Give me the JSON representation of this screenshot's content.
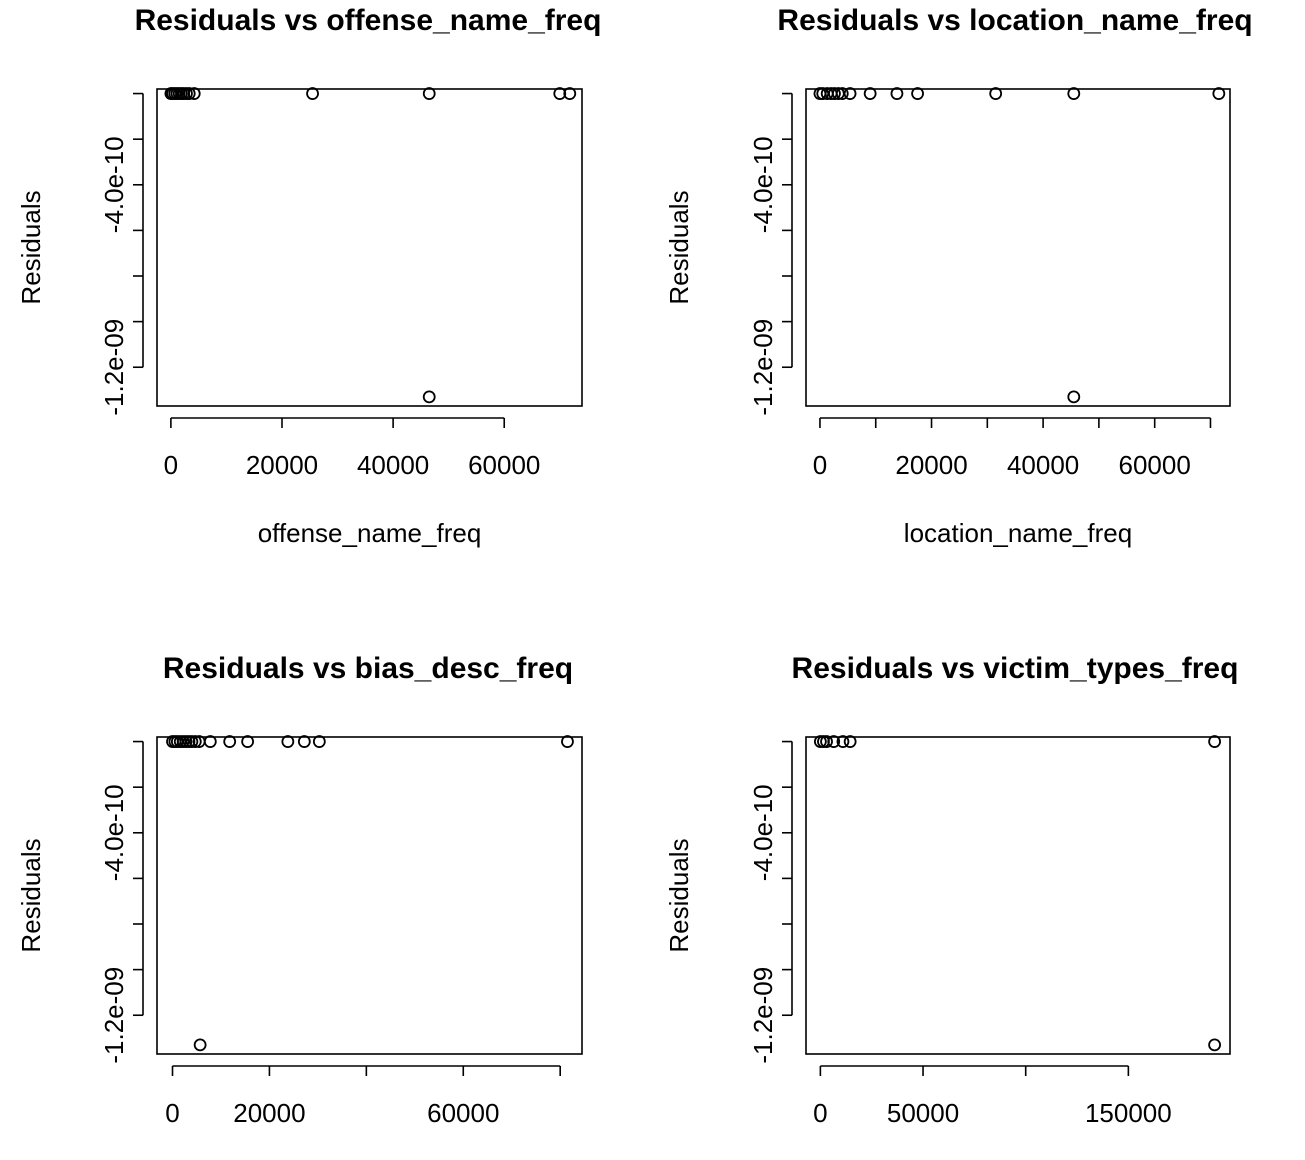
{
  "chart_data": [
    {
      "type": "scatter",
      "title": "Residuals vs offense_name_freq",
      "xlabel": "offense_name_freq",
      "ylabel": "Residuals",
      "xticks": [
        0,
        20000,
        40000,
        60000
      ],
      "xtick_labels": [
        "0",
        "20000",
        "40000",
        "60000"
      ],
      "yticks": [
        0,
        -2e-10,
        -4e-10,
        -6e-10,
        -8e-10,
        -1e-09,
        -1.2e-09
      ],
      "ytick_labels": [
        "",
        "-4.0e-10",
        "",
        "-1.2e-09"
      ],
      "ytick_label_values": [
        -2e-10,
        -4e-10,
        -1e-09,
        -1.2e-09
      ],
      "xlim": [
        -2500,
        74000
      ],
      "ylim": [
        -1.37e-09,
        2e-11
      ],
      "points": [
        {
          "x": 0,
          "y": 0
        },
        {
          "x": 300,
          "y": 0
        },
        {
          "x": 700,
          "y": 0
        },
        {
          "x": 1100,
          "y": 0
        },
        {
          "x": 1500,
          "y": 0
        },
        {
          "x": 1900,
          "y": 0
        },
        {
          "x": 2300,
          "y": 0
        },
        {
          "x": 2800,
          "y": 0
        },
        {
          "x": 3300,
          "y": 0
        },
        {
          "x": 4200,
          "y": 0
        },
        {
          "x": 25500,
          "y": 0
        },
        {
          "x": 46500,
          "y": 0
        },
        {
          "x": 70000,
          "y": 0
        },
        {
          "x": 71800,
          "y": 0
        },
        {
          "x": 46500,
          "y": -1.33e-09
        }
      ]
    },
    {
      "type": "scatter",
      "title": "Residuals vs location_name_freq",
      "xlabel": "location_name_freq",
      "ylabel": "Residuals",
      "xticks": [
        0,
        10000,
        20000,
        30000,
        40000,
        50000,
        60000,
        70000
      ],
      "xtick_labels": [
        "0",
        "",
        "20000",
        "",
        "40000",
        "",
        "60000",
        ""
      ],
      "yticks": [
        0,
        -2e-10,
        -4e-10,
        -6e-10,
        -8e-10,
        -1e-09,
        -1.2e-09
      ],
      "ytick_labels": [
        "",
        "-4.0e-10",
        "",
        "-1.2e-09"
      ],
      "ytick_label_values": [
        -2e-10,
        -4e-10,
        -1e-09,
        -1.2e-09
      ],
      "xlim": [
        -2500,
        73500
      ],
      "ylim": [
        -1.37e-09,
        2e-11
      ],
      "points": [
        {
          "x": 0,
          "y": 0
        },
        {
          "x": 500,
          "y": 0
        },
        {
          "x": 1300,
          "y": 0
        },
        {
          "x": 2000,
          "y": 0
        },
        {
          "x": 2600,
          "y": 0
        },
        {
          "x": 3300,
          "y": 0
        },
        {
          "x": 4000,
          "y": 0
        },
        {
          "x": 5400,
          "y": 0
        },
        {
          "x": 9000,
          "y": 0
        },
        {
          "x": 13800,
          "y": 0
        },
        {
          "x": 17500,
          "y": 0
        },
        {
          "x": 31500,
          "y": 0
        },
        {
          "x": 45500,
          "y": 0
        },
        {
          "x": 71500,
          "y": 0
        },
        {
          "x": 45500,
          "y": -1.33e-09
        }
      ]
    },
    {
      "type": "scatter",
      "title": "Residuals vs bias_desc_freq",
      "xlabel": "",
      "ylabel": "Residuals",
      "xticks": [
        0,
        20000,
        40000,
        60000,
        80000
      ],
      "xtick_labels": [
        "0",
        "20000",
        "",
        "60000",
        ""
      ],
      "yticks": [
        0,
        -2e-10,
        -4e-10,
        -6e-10,
        -8e-10,
        -1e-09,
        -1.2e-09
      ],
      "ytick_labels": [
        "",
        "-4.0e-10",
        "",
        "-1.2e-09"
      ],
      "ytick_label_values": [
        -2e-10,
        -4e-10,
        -1e-09,
        -1.2e-09
      ],
      "xlim": [
        -3200,
        84500
      ],
      "ylim": [
        -1.37e-09,
        2e-11
      ],
      "points": [
        {
          "x": 0,
          "y": 0
        },
        {
          "x": 500,
          "y": 0
        },
        {
          "x": 1000,
          "y": 0
        },
        {
          "x": 1600,
          "y": 0
        },
        {
          "x": 2200,
          "y": 0
        },
        {
          "x": 2800,
          "y": 0
        },
        {
          "x": 3400,
          "y": 0
        },
        {
          "x": 4000,
          "y": 0
        },
        {
          "x": 4700,
          "y": 0
        },
        {
          "x": 5500,
          "y": 0
        },
        {
          "x": 7800,
          "y": 0
        },
        {
          "x": 11800,
          "y": 0
        },
        {
          "x": 15500,
          "y": 0
        },
        {
          "x": 23800,
          "y": 0
        },
        {
          "x": 27200,
          "y": 0
        },
        {
          "x": 30300,
          "y": 0
        },
        {
          "x": 81500,
          "y": 0
        },
        {
          "x": 5700,
          "y": -1.33e-09
        }
      ]
    },
    {
      "type": "scatter",
      "title": "Residuals vs victim_types_freq",
      "xlabel": "",
      "ylabel": "Residuals",
      "xticks": [
        0,
        50000,
        100000,
        150000
      ],
      "xtick_labels": [
        "0",
        "50000",
        "",
        "150000"
      ],
      "yticks": [
        0,
        -2e-10,
        -4e-10,
        -6e-10,
        -8e-10,
        -1e-09,
        -1.2e-09
      ],
      "ytick_labels": [
        "",
        "-4.0e-10",
        "",
        "-1.2e-09"
      ],
      "ytick_label_values": [
        -2e-10,
        -4e-10,
        -1e-09,
        -1.2e-09
      ],
      "xlim": [
        -7000,
        199500
      ],
      "ylim": [
        -1.37e-09,
        2e-11
      ],
      "points": [
        {
          "x": 0,
          "y": 0
        },
        {
          "x": 1500,
          "y": 0
        },
        {
          "x": 3000,
          "y": 0
        },
        {
          "x": 6500,
          "y": 0
        },
        {
          "x": 11000,
          "y": 0
        },
        {
          "x": 14500,
          "y": 0
        },
        {
          "x": 192000,
          "y": 0
        },
        {
          "x": 192000,
          "y": -1.33e-09
        }
      ]
    }
  ]
}
